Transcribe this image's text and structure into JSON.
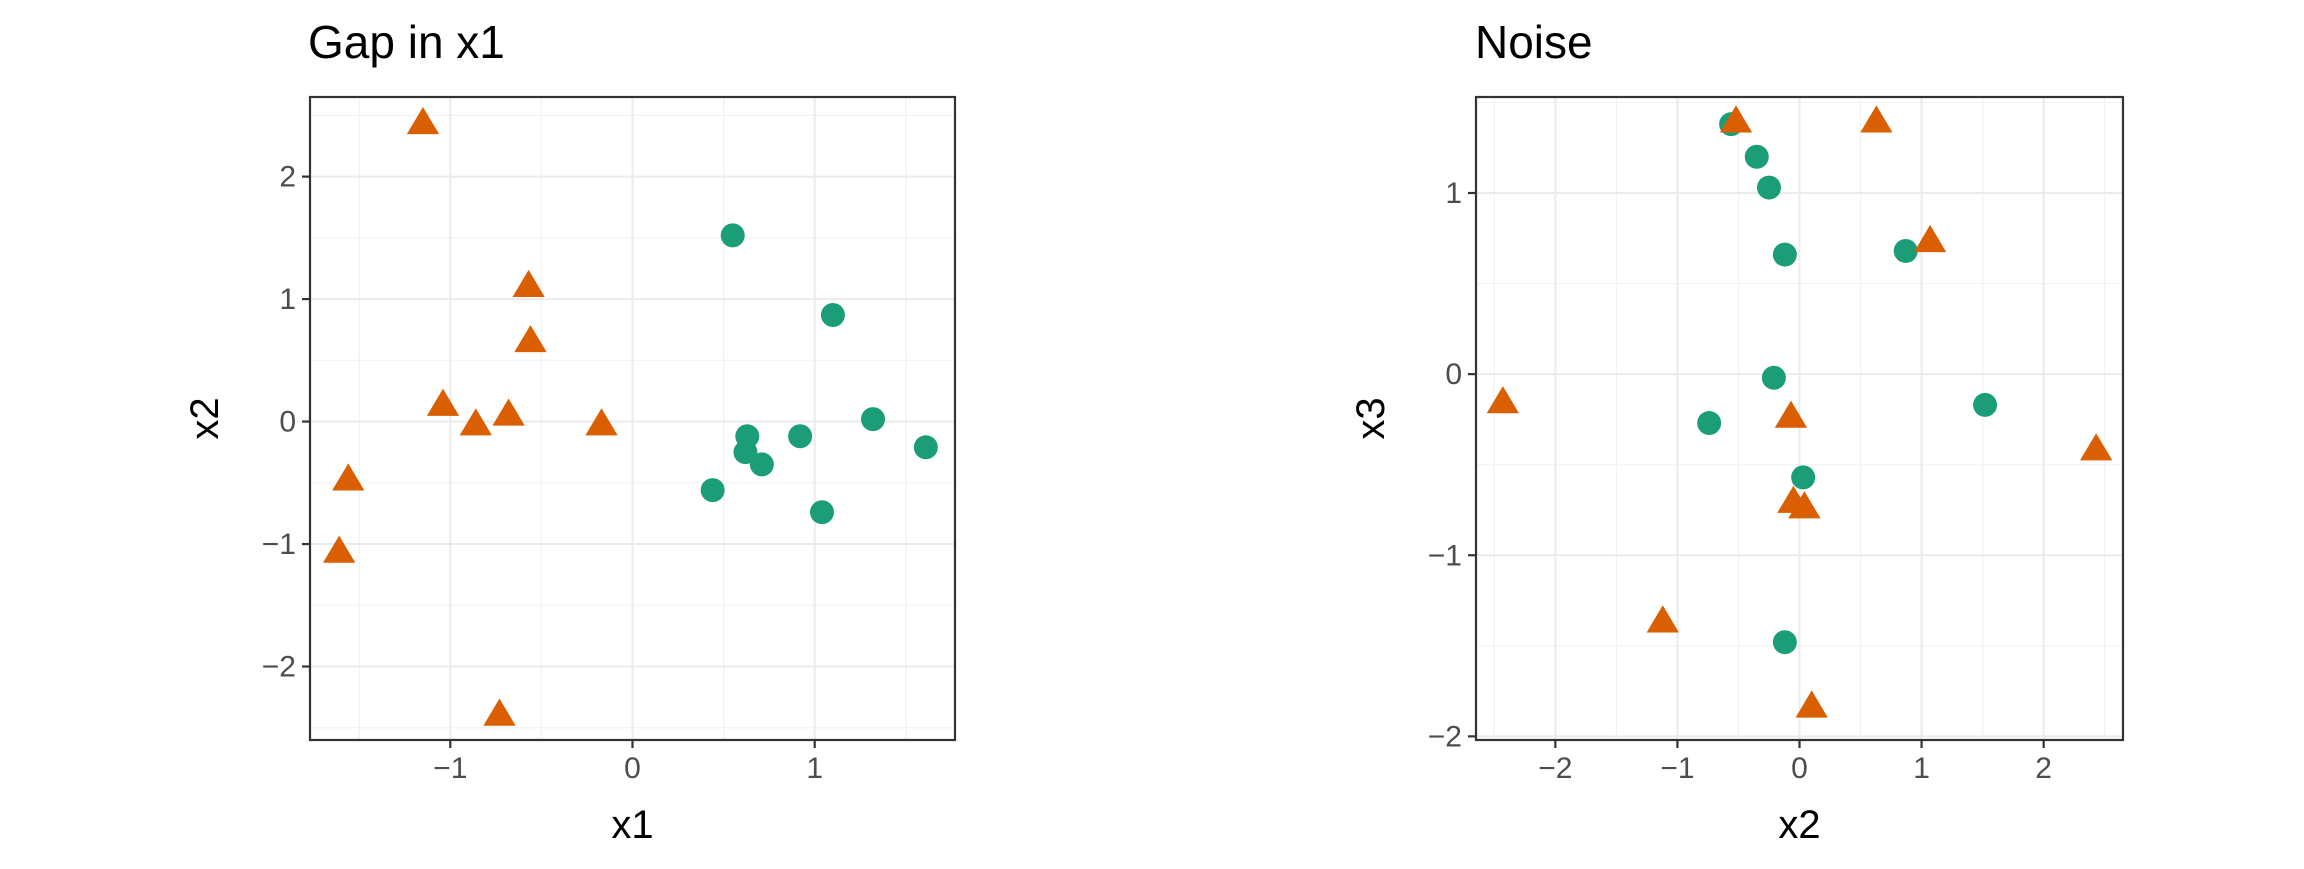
{
  "chart_data": [
    {
      "type": "scatter",
      "title": "Gap in x1",
      "xlabel": "x1",
      "ylabel": "x2",
      "xlim": [
        -1.77,
        1.77
      ],
      "ylim": [
        -2.6,
        2.65
      ],
      "xticks": [
        -1,
        0,
        1
      ],
      "yticks": [
        -2,
        -1,
        0,
        1,
        2
      ],
      "grid": true,
      "legend": "none",
      "series": [
        {
          "marker": "circle",
          "color": "#1b9e77",
          "points": [
            [
              0.55,
              1.52
            ],
            [
              1.1,
              0.87
            ],
            [
              1.32,
              0.02
            ],
            [
              1.61,
              -0.21
            ],
            [
              0.92,
              -0.12
            ],
            [
              0.63,
              -0.12
            ],
            [
              0.62,
              -0.25
            ],
            [
              0.71,
              -0.35
            ],
            [
              0.44,
              -0.56
            ],
            [
              1.04,
              -0.74
            ]
          ]
        },
        {
          "marker": "triangle",
          "color": "#d95f02",
          "points": [
            [
              -1.15,
              2.43
            ],
            [
              -0.57,
              1.1
            ],
            [
              -0.56,
              0.65
            ],
            [
              -1.04,
              0.13
            ],
            [
              -0.68,
              0.05
            ],
            [
              -0.86,
              -0.03
            ],
            [
              -0.17,
              -0.03
            ],
            [
              -1.56,
              -0.48
            ],
            [
              -1.61,
              -1.07
            ],
            [
              -0.73,
              -2.4
            ]
          ]
        }
      ]
    },
    {
      "type": "scatter",
      "title": "Noise",
      "xlabel": "x2",
      "ylabel": "x3",
      "xlim": [
        -2.65,
        2.65
      ],
      "ylim": [
        -2.02,
        1.53
      ],
      "xticks": [
        -2,
        -1,
        0,
        1,
        2
      ],
      "yticks": [
        -2,
        -1,
        0,
        1
      ],
      "grid": true,
      "legend": "none",
      "series": [
        {
          "marker": "circle",
          "color": "#1b9e77",
          "points": [
            [
              -0.56,
              1.38
            ],
            [
              -0.35,
              1.2
            ],
            [
              -0.25,
              1.03
            ],
            [
              -0.12,
              0.66
            ],
            [
              0.87,
              0.68
            ],
            [
              -0.21,
              -0.02
            ],
            [
              1.52,
              -0.17
            ],
            [
              -0.74,
              -0.27
            ],
            [
              0.03,
              -0.57
            ],
            [
              -0.12,
              -1.48
            ]
          ]
        },
        {
          "marker": "triangle",
          "color": "#d95f02",
          "points": [
            [
              -0.52,
              1.39
            ],
            [
              0.63,
              1.39
            ],
            [
              1.07,
              0.73
            ],
            [
              -2.43,
              -0.16
            ],
            [
              -0.07,
              -0.24
            ],
            [
              2.43,
              -0.42
            ],
            [
              -0.05,
              -0.71
            ],
            [
              0.04,
              -0.74
            ],
            [
              -1.12,
              -1.37
            ],
            [
              0.1,
              -1.84
            ]
          ]
        }
      ]
    }
  ]
}
